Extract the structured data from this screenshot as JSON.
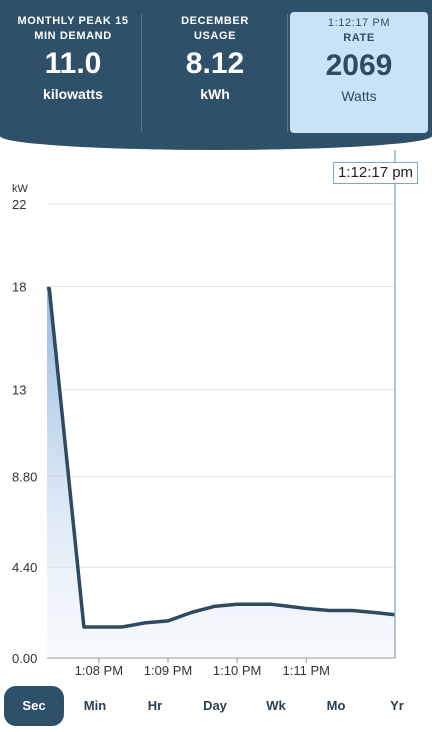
{
  "header": {
    "cards": [
      {
        "title_line1": "MONTHLY PEAK 15",
        "title_line2": "MIN DEMAND",
        "value": "11.0",
        "unit": "kilowatts"
      },
      {
        "title_line1": "DECEMBER",
        "title_line2": "USAGE",
        "value": "8.12",
        "unit": "kWh"
      },
      {
        "title_line1": "1:12:17 PM",
        "title_line2": "RATE",
        "value": "2069",
        "unit": "Watts"
      }
    ]
  },
  "colors": {
    "header_bg": "#2f5069",
    "highlight_card": "#c9e3f6",
    "line": "#2e4a60",
    "fill_top": "#8fb4de",
    "grid": "#e3e3e3"
  },
  "chart_data": {
    "type": "area",
    "ylabel": "kW",
    "yticks": [
      "0.00",
      "4.40",
      "8.80",
      "13",
      "18",
      "22"
    ],
    "ylim": [
      0,
      22
    ],
    "x_ticks": [
      "1:08 PM",
      "1:09 PM",
      "1:10 PM",
      "1:11 PM"
    ],
    "cursor_label": "1:12:17 pm",
    "series": [
      {
        "values": [
          {
            "x": "1:07:15",
            "y": 17.9
          },
          {
            "x": "1:07:17",
            "y": 17.9
          },
          {
            "x": "1:07:47",
            "y": 1.5
          },
          {
            "x": "1:08:00",
            "y": 1.5
          },
          {
            "x": "1:08:20",
            "y": 1.5
          },
          {
            "x": "1:08:40",
            "y": 1.7
          },
          {
            "x": "1:09:00",
            "y": 1.8
          },
          {
            "x": "1:09:20",
            "y": 2.2
          },
          {
            "x": "1:09:40",
            "y": 2.5
          },
          {
            "x": "1:10:00",
            "y": 2.6
          },
          {
            "x": "1:10:30",
            "y": 2.6
          },
          {
            "x": "1:10:45",
            "y": 2.5
          },
          {
            "x": "1:11:00",
            "y": 2.4
          },
          {
            "x": "1:11:20",
            "y": 2.3
          },
          {
            "x": "1:11:40",
            "y": 2.3
          },
          {
            "x": "1:12:00",
            "y": 2.2
          },
          {
            "x": "1:12:17",
            "y": 2.1
          }
        ]
      }
    ]
  },
  "tabs": [
    {
      "label": "Sec",
      "active": true
    },
    {
      "label": "Min",
      "active": false
    },
    {
      "label": "Hr",
      "active": false
    },
    {
      "label": "Day",
      "active": false
    },
    {
      "label": "Wk",
      "active": false
    },
    {
      "label": "Mo",
      "active": false
    },
    {
      "label": "Yr",
      "active": false
    }
  ]
}
